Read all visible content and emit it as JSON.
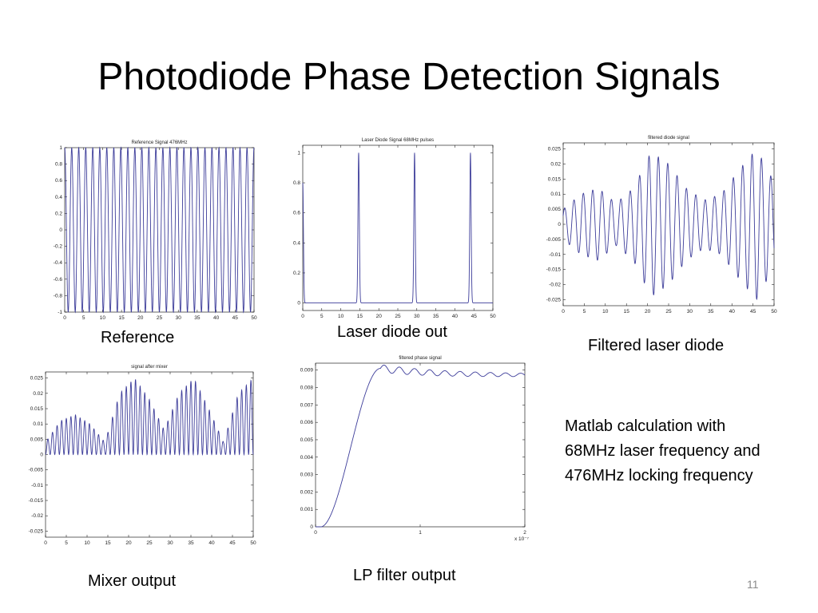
{
  "slide": {
    "title": "Photodiode Phase Detection Signals",
    "number": "11",
    "note": "Matlab calculation with 68MHz laser frequency and 476MHz locking frequency"
  },
  "captions": {
    "reference": "Reference",
    "laser": "Laser diode out",
    "filtered": "Filtered laser diode",
    "mixer": "Mixer output",
    "lp": "LP filter output"
  },
  "colors": {
    "line": "#3d3d9a",
    "axes": "#000000"
  },
  "chart_data": [
    {
      "id": "reference",
      "type": "line",
      "title": "Reference Signal 476MHz",
      "xlim": [
        0,
        50
      ],
      "ylim": [
        -1,
        1
      ],
      "x_ticks": [
        0,
        5,
        10,
        15,
        20,
        25,
        30,
        35,
        40,
        45,
        50
      ],
      "x_tick_labels": [
        "0",
        "5",
        "10",
        "15",
        "20",
        "25",
        "30",
        "35",
        "40",
        "45",
        "50"
      ],
      "y_ticks": [
        -1,
        -0.8,
        -0.6,
        -0.4,
        -0.2,
        0,
        0.2,
        0.4,
        0.6,
        0.8,
        1
      ],
      "y_tick_labels": [
        "-1",
        "-0.8",
        "-0.6",
        "-0.4",
        "-0.2",
        "0",
        "0.2",
        "0.4",
        "0.6",
        "0.8",
        "1"
      ],
      "series": [
        {
          "model": "sinusoid",
          "amplitude": 1,
          "cycles": 27,
          "phase": 1.5708
        }
      ]
    },
    {
      "id": "laser",
      "type": "line",
      "title": "Laser Diode Signal 68MHz pulses",
      "xlim": [
        0,
        50
      ],
      "ylim": [
        -0.05,
        1.05
      ],
      "x_ticks": [
        0,
        5,
        10,
        15,
        20,
        25,
        30,
        35,
        40,
        45,
        50
      ],
      "x_tick_labels": [
        "0",
        "5",
        "10",
        "15",
        "20",
        "25",
        "30",
        "35",
        "40",
        "45",
        "50"
      ],
      "y_ticks": [
        0,
        0.2,
        0.4,
        0.6,
        0.8,
        1
      ],
      "y_tick_labels": [
        "0",
        "0.2",
        "0.4",
        "0.6",
        "0.8",
        "1"
      ],
      "series": [
        {
          "model": "pulses",
          "baseline": 0,
          "width": 0.25,
          "pulses": [
            {
              "x": 0,
              "y": 0.8
            },
            {
              "x": 14.7,
              "y": 1.0
            },
            {
              "x": 29.4,
              "y": 1.0
            },
            {
              "x": 44.1,
              "y": 1.0
            }
          ]
        }
      ]
    },
    {
      "id": "filtered",
      "type": "line",
      "title": "filtered diode signal",
      "xlim": [
        0,
        50
      ],
      "ylim": [
        -0.027,
        0.027
      ],
      "x_ticks": [
        0,
        5,
        10,
        15,
        20,
        25,
        30,
        35,
        40,
        45,
        50
      ],
      "x_tick_labels": [
        "0",
        "5",
        "10",
        "15",
        "20",
        "25",
        "30",
        "35",
        "40",
        "45",
        "50"
      ],
      "y_ticks": [
        -0.025,
        -0.02,
        -0.015,
        -0.01,
        -0.005,
        0,
        0.005,
        0.01,
        0.015,
        0.02,
        0.025
      ],
      "y_tick_labels": [
        "-0.025",
        "-0.02",
        "-0.015",
        "-0.01",
        "-0.005",
        "0",
        "0.005",
        "0.01",
        "0.015",
        "0.02",
        "0.025"
      ],
      "series": [
        {
          "model": "filtered",
          "cycles": 22.5,
          "envelope": [
            0.005,
            0.01,
            0.012,
            0.007,
            0.012,
            0.024,
            0.02,
            0.012,
            0.008,
            0.01,
            0.018,
            0.025,
            0.014
          ]
        }
      ]
    },
    {
      "id": "mixer",
      "type": "line",
      "title": "signal after mixer",
      "xlim": [
        0,
        50
      ],
      "ylim": [
        -0.027,
        0.027
      ],
      "x_ticks": [
        0,
        5,
        10,
        15,
        20,
        25,
        30,
        35,
        40,
        45,
        50
      ],
      "x_tick_labels": [
        "0",
        "5",
        "10",
        "15",
        "20",
        "25",
        "30",
        "35",
        "40",
        "45",
        "50"
      ],
      "y_ticks": [
        -0.025,
        -0.02,
        -0.015,
        -0.01,
        -0.005,
        0,
        0.005,
        0.01,
        0.015,
        0.02,
        0.025
      ],
      "y_tick_labels": [
        "-0.025",
        "-0.02",
        "-0.015",
        "-0.01",
        "-0.005",
        "0",
        "0.005",
        "0.01",
        "0.015",
        "0.02",
        "0.025"
      ],
      "series": [
        {
          "model": "mixer",
          "cycles": 45,
          "envelope": [
            0.004,
            0.011,
            0.013,
            0.01,
            0.004,
            0.02,
            0.025,
            0.018,
            0.008,
            0.02,
            0.025,
            0.015,
            0.004,
            0.02,
            0.025
          ]
        }
      ]
    },
    {
      "id": "lp",
      "type": "line",
      "title": "filtered phase signal",
      "xlim": [
        0,
        2
      ],
      "ylim": [
        0,
        0.0094
      ],
      "x_ticks": [
        0,
        1,
        2
      ],
      "x_tick_labels": [
        "0",
        "1",
        "2"
      ],
      "x_multiplier": "x 10⁻⁷",
      "y_ticks": [
        0,
        0.001,
        0.002,
        0.003,
        0.004,
        0.005,
        0.006,
        0.007,
        0.008,
        0.009
      ],
      "y_tick_labels": [
        "0",
        "0.001",
        "0.002",
        "0.003",
        "0.004",
        "0.005",
        "0.006",
        "0.007",
        "0.008",
        "0.009"
      ],
      "series": [
        {
          "model": "step",
          "final": 0.0087,
          "overshoot": 0.0091,
          "rise_start": 0.05,
          "rise_end": 0.62,
          "ripple": 0.00022,
          "ripple_period": 0.145
        }
      ]
    }
  ]
}
